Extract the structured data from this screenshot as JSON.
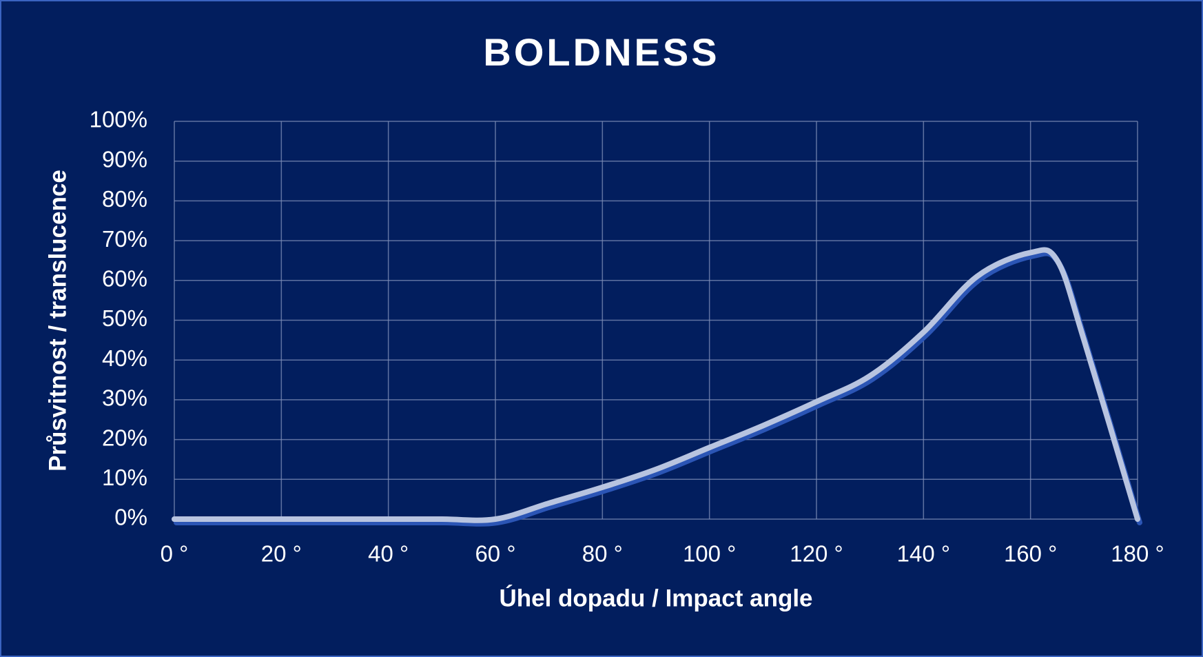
{
  "chart_data": {
    "type": "line",
    "title": "BOLDNESS",
    "x_label": "Úhel dopadu / Impact angle",
    "y_label": "Průsvitnost / translucence",
    "x": [
      0,
      10,
      20,
      30,
      40,
      50,
      60,
      70,
      80,
      90,
      100,
      110,
      120,
      130,
      140,
      150,
      160,
      165,
      170,
      180
    ],
    "values": [
      0,
      0,
      0,
      0,
      0,
      0,
      0,
      4,
      8,
      12.5,
      18,
      23.5,
      29.5,
      36,
      47,
      61,
      67,
      65,
      45,
      0
    ],
    "color": "#b8c4e0",
    "xlim": [
      0,
      180
    ],
    "xticks": [
      {
        "value": 0,
        "label": "0 °"
      },
      {
        "value": 20,
        "label": "20 °"
      },
      {
        "value": 40,
        "label": "40 °"
      },
      {
        "value": 60,
        "label": "60 °"
      },
      {
        "value": 80,
        "label": "80 °"
      },
      {
        "value": 100,
        "label": "100 °"
      },
      {
        "value": 120,
        "label": "120 °"
      },
      {
        "value": 140,
        "label": "140 °"
      },
      {
        "value": 160,
        "label": "160 °"
      },
      {
        "value": 180,
        "label": "180 °"
      }
    ],
    "ylim": [
      0,
      100
    ],
    "yticks": [
      {
        "value": 0,
        "label": "0%"
      },
      {
        "value": 10,
        "label": "10%"
      },
      {
        "value": 20,
        "label": "20%"
      },
      {
        "value": 30,
        "label": "30%"
      },
      {
        "value": 40,
        "label": "40%"
      },
      {
        "value": 50,
        "label": "50%"
      },
      {
        "value": 60,
        "label": "60%"
      },
      {
        "value": 70,
        "label": "70%"
      },
      {
        "value": 80,
        "label": "80%"
      },
      {
        "value": 90,
        "label": "90%"
      },
      {
        "value": 100,
        "label": "100%"
      }
    ],
    "grid": true
  }
}
